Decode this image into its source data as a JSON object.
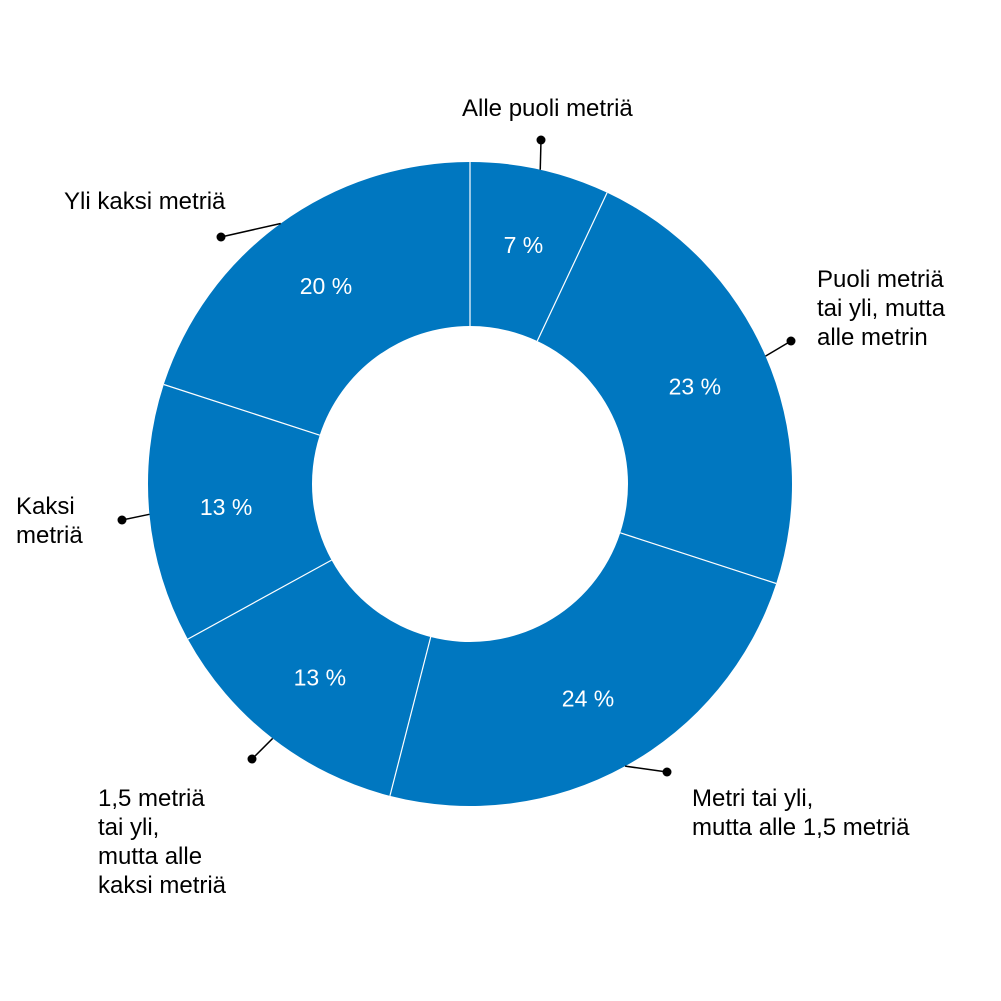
{
  "chart_data": {
    "type": "pie",
    "variant": "donut",
    "categories": [
      "Alle puoli metriä",
      "Puoli metriä tai yli, mutta alle metrin",
      "Metri tai yli, mutta alle 1,5 metriä",
      "1,5 metriä tai yli, mutta alle kaksi metriä",
      "Kaksi metriä",
      "Yli kaksi metriä"
    ],
    "values": [
      7,
      23,
      24,
      13,
      13,
      20
    ],
    "value_labels": [
      "7 %",
      "23 %",
      "24 %",
      "13 %",
      "13 %",
      "20 %"
    ],
    "category_label_lines": [
      [
        "Alle puoli metriä"
      ],
      [
        "Puoli metriä",
        "tai yli, mutta",
        "alle metrin"
      ],
      [
        "Metri tai yli,",
        "mutta alle 1,5 metriä"
      ],
      [
        "1,5 metriä",
        "tai yli,",
        "mutta alle",
        "kaksi metriä"
      ],
      [
        "Kaksi",
        "metriä"
      ],
      [
        "Yli kaksi metriä"
      ]
    ],
    "start_angle_deg": 0,
    "direction": "clockwise",
    "colors": {
      "slice": "#0077c0",
      "separator": "#ffffff",
      "value_text": "#ffffff",
      "label_text": "#000000",
      "leader": "#000000"
    },
    "title": "",
    "legend": "none"
  }
}
